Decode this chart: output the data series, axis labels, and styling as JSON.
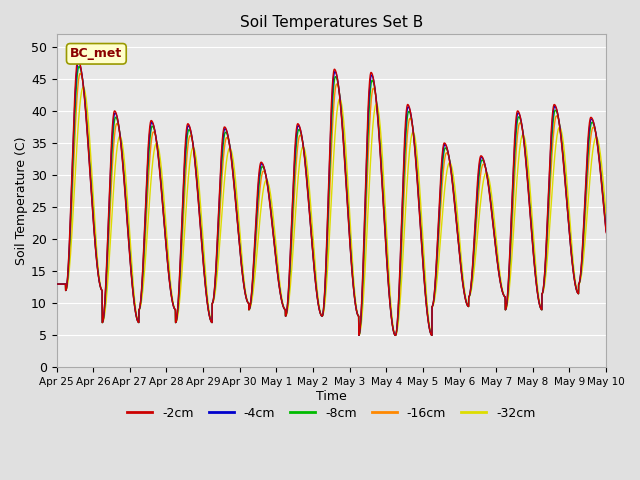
{
  "title": "Soil Temperatures Set B",
  "xlabel": "Time",
  "ylabel": "Soil Temperature (C)",
  "ylim": [
    0,
    52
  ],
  "background_color": "#e0e0e0",
  "plot_bg_color": "#e8e8e8",
  "grid_color": "#ffffff",
  "legend_label": "BC_met",
  "series": [
    {
      "label": "-2cm",
      "color": "#cc0000",
      "amp_scale": 1.0,
      "phase_hrs": 0.0
    },
    {
      "label": "-4cm",
      "color": "#0000cc",
      "amp_scale": 0.99,
      "phase_hrs": 0.3
    },
    {
      "label": "-8cm",
      "color": "#00bb00",
      "amp_scale": 0.97,
      "phase_hrs": 0.7
    },
    {
      "label": "-16cm",
      "color": "#ff8800",
      "amp_scale": 0.94,
      "phase_hrs": 1.5
    },
    {
      "label": "-32cm",
      "color": "#dddd00",
      "amp_scale": 0.88,
      "phase_hrs": 3.5
    }
  ],
  "tick_labels": [
    "Apr 25",
    "Apr 26",
    "Apr 27",
    "Apr 28",
    "Apr 29",
    "Apr 30",
    "May 1",
    "May 2",
    "May 3",
    "May 4",
    "May 5",
    "May 6",
    "May 7",
    "May 8",
    "May 9",
    "May 10"
  ],
  "tick_positions": [
    0,
    1,
    2,
    3,
    4,
    5,
    6,
    7,
    8,
    9,
    10,
    11,
    12,
    13,
    14,
    15
  ],
  "daily_peaks": [
    48,
    40,
    38.5,
    38,
    37.5,
    32,
    38,
    46.5,
    46,
    41,
    35,
    33,
    40,
    41,
    39
  ],
  "daily_mins": [
    12,
    7,
    9,
    7,
    10,
    9,
    8,
    8,
    5,
    5,
    9.5,
    11,
    9,
    11.5,
    13
  ],
  "peak_hour": 14.0
}
